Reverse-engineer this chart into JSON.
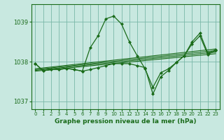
{
  "title": "Graphe pression niveau de la mer (hPa)",
  "background_color": "#c8e8e0",
  "grid_color": "#7ab8a8",
  "line_color": "#1a6b1a",
  "xlim": [
    -0.5,
    23.5
  ],
  "ylim": [
    1036.8,
    1039.45
  ],
  "yticks": [
    1037,
    1038,
    1039
  ],
  "xticks": [
    0,
    1,
    2,
    3,
    4,
    5,
    6,
    7,
    8,
    9,
    10,
    11,
    12,
    13,
    14,
    15,
    16,
    17,
    18,
    19,
    20,
    21,
    22,
    23
  ],
  "series": [
    {
      "x": [
        0,
        1,
        2,
        3,
        4,
        5,
        6,
        7,
        8,
        9,
        10,
        11,
        12,
        13,
        14,
        15,
        16,
        17,
        18,
        19,
        20,
        21,
        22,
        23
      ],
      "y": [
        1037.95,
        1037.77,
        1037.8,
        1037.8,
        1037.83,
        1037.8,
        1037.76,
        1038.35,
        1038.65,
        1039.08,
        1039.15,
        1038.95,
        1038.5,
        1038.15,
        1037.82,
        1037.35,
        1037.72,
        1037.82,
        1037.98,
        1038.15,
        1038.5,
        1038.72,
        1038.22,
        1038.3
      ],
      "markers": true
    },
    {
      "x": [
        0,
        1,
        2,
        3,
        4,
        5,
        6,
        7,
        8,
        9,
        10,
        11,
        12,
        13,
        14,
        15,
        16,
        17,
        18,
        19,
        20,
        21,
        22,
        23
      ],
      "y": [
        1037.95,
        1037.77,
        1037.8,
        1037.8,
        1037.83,
        1037.8,
        1037.76,
        1037.8,
        1037.85,
        1037.9,
        1037.95,
        1037.95,
        1037.95,
        1037.9,
        1037.85,
        1037.18,
        1037.62,
        1037.78,
        1037.98,
        1038.15,
        1038.45,
        1038.65,
        1038.18,
        1038.28
      ],
      "markers": true
    },
    {
      "x": [
        0,
        23
      ],
      "y": [
        1037.82,
        1038.32
      ],
      "markers": false
    },
    {
      "x": [
        0,
        23
      ],
      "y": [
        1037.8,
        1038.28
      ],
      "markers": false
    },
    {
      "x": [
        0,
        23
      ],
      "y": [
        1037.78,
        1038.24
      ],
      "markers": false
    },
    {
      "x": [
        0,
        23
      ],
      "y": [
        1037.76,
        1038.2
      ],
      "markers": false
    }
  ]
}
